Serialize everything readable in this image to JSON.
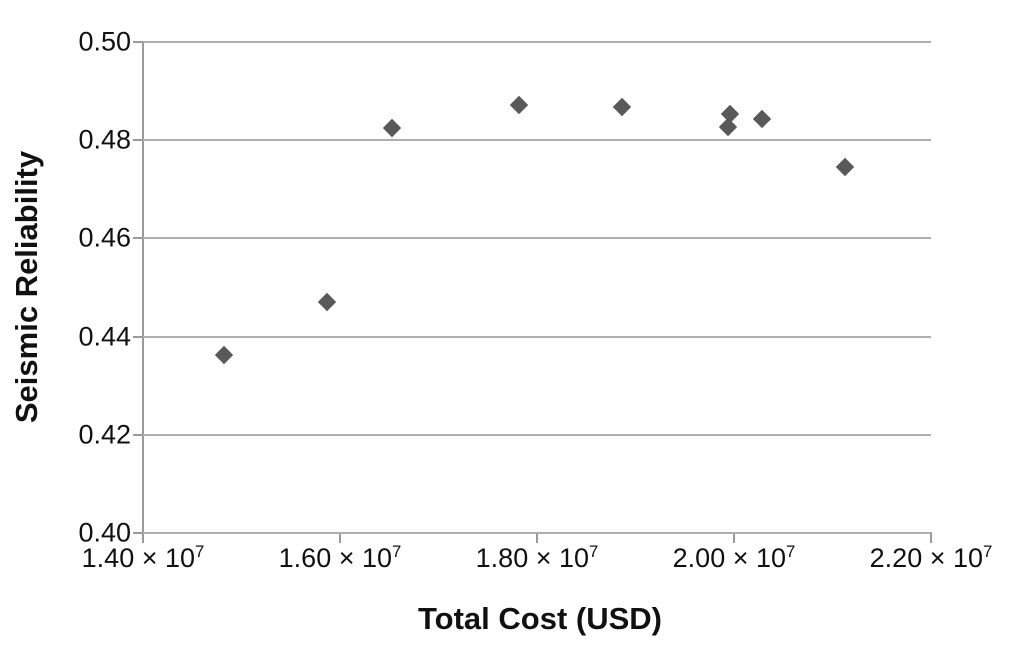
{
  "chart_data": {
    "type": "scatter",
    "title": "",
    "xlabel": "Total Cost (USD)",
    "ylabel": "Seismic Reliability",
    "xlim": [
      14000000,
      22000000
    ],
    "ylim": [
      0.4,
      0.5
    ],
    "grid": "horizontal",
    "legend": "none",
    "x_tick_times": "×",
    "x_tick_base": "10",
    "x_tick_exponent": "7",
    "x_ticks": [
      {
        "value": 14000000,
        "mantissa": "1.40"
      },
      {
        "value": 16000000,
        "mantissa": "1.60"
      },
      {
        "value": 18000000,
        "mantissa": "1.80"
      },
      {
        "value": 20000000,
        "mantissa": "2.00"
      },
      {
        "value": 22000000,
        "mantissa": "2.20"
      }
    ],
    "y_ticks": [
      {
        "value": 0.5,
        "label": "0.50"
      },
      {
        "value": 0.48,
        "label": "0.48"
      },
      {
        "value": 0.46,
        "label": "0.46"
      },
      {
        "value": 0.44,
        "label": "0.44"
      },
      {
        "value": 0.42,
        "label": "0.42"
      },
      {
        "value": 0.4,
        "label": "0.40"
      }
    ],
    "marker": {
      "shape": "diamond",
      "color": "#595959"
    },
    "points": [
      {
        "x": 14820000,
        "y": 0.4363
      },
      {
        "x": 15870000,
        "y": 0.4471
      },
      {
        "x": 16530000,
        "y": 0.4824
      },
      {
        "x": 17820000,
        "y": 0.4871
      },
      {
        "x": 18860000,
        "y": 0.4868
      },
      {
        "x": 19940000,
        "y": 0.4827
      },
      {
        "x": 19960000,
        "y": 0.4853
      },
      {
        "x": 20280000,
        "y": 0.4843
      },
      {
        "x": 21130000,
        "y": 0.4745
      }
    ],
    "colors": {
      "marker": "#595959",
      "gridline": "#aeaeae",
      "axis": "#9a9a9a",
      "text": "#111111"
    }
  }
}
